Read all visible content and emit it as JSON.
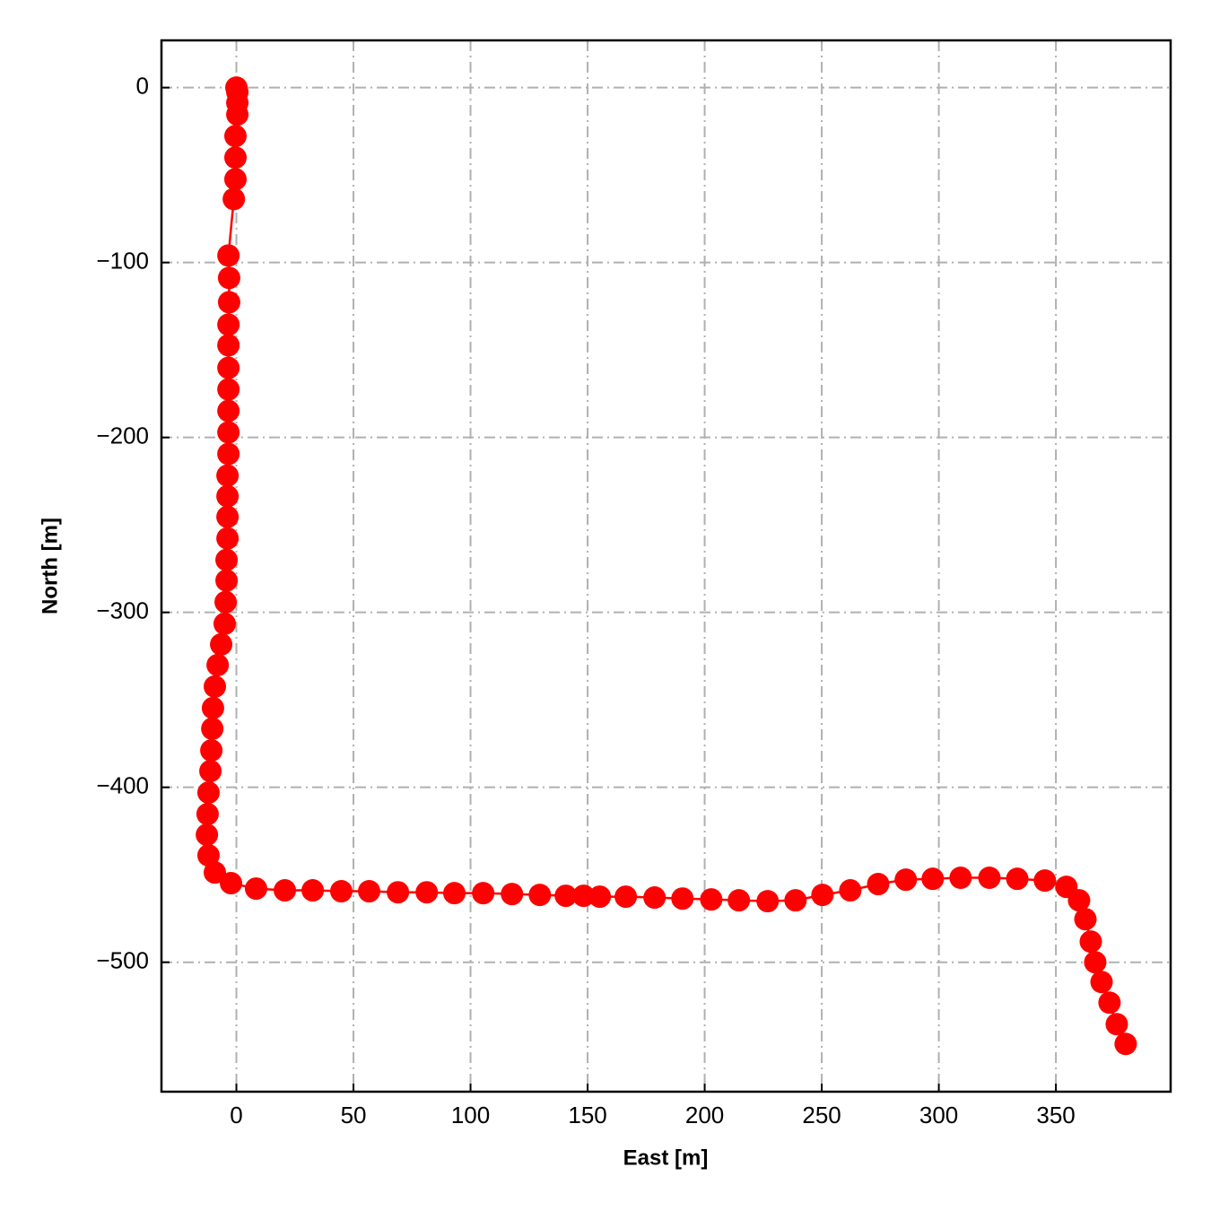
{
  "chart_data": {
    "type": "line",
    "x_label": "East [m]",
    "y_label": "North [m]",
    "xlim": [
      -32,
      399
    ],
    "ylim": [
      -574,
      27
    ],
    "xticks": [
      0,
      50,
      100,
      150,
      200,
      250,
      300,
      350
    ],
    "yticks": [
      0,
      {
        "value": -100,
        "label": "−100"
      },
      {
        "value": -200,
        "label": "−200"
      },
      {
        "value": -300,
        "label": "−300"
      },
      {
        "value": -400,
        "label": "−400"
      },
      {
        "value": -500,
        "label": "−500"
      }
    ],
    "grid": true,
    "x": [
      0,
      0.4,
      0.4,
      0.4,
      -0.4,
      -0.4,
      -0.4,
      -1.1,
      -3.4,
      -3.1,
      -3.1,
      -3.4,
      -3.4,
      -3.4,
      -3.4,
      -3.4,
      -3.4,
      -3.4,
      -3.8,
      -3.8,
      -3.8,
      -3.8,
      -4.2,
      -4.2,
      -4.6,
      -5,
      -6.5,
      -8,
      -9.2,
      -10,
      -10.3,
      -10.7,
      -11.1,
      -11.9,
      -12.3,
      -12.6,
      -11.9,
      -9.2,
      -2.3,
      8.4,
      20.7,
      32.6,
      44.8,
      56.7,
      69,
      81.3,
      93.1,
      105.4,
      117.7,
      129.6,
      140.7,
      148.3,
      155.2,
      166.3,
      178.6,
      190.5,
      202.8,
      214.6,
      226.9,
      238.8,
      250.3,
      262.2,
      274.1,
      285.9,
      297.4,
      309.3,
      321.6,
      333.5,
      345.3,
      354.5,
      359.9,
      362.6,
      364.9,
      366.8,
      369.5,
      372.9,
      376,
      379.8
    ],
    "series": [
      {
        "color": "#ff0000",
        "values": [
          0,
          -2.6,
          -8.7,
          -15.4,
          -27.7,
          -40,
          -52.4,
          -63.7,
          -96,
          -108.8,
          -122.7,
          -135.5,
          -147.3,
          -160.2,
          -172.5,
          -184.8,
          -197.1,
          -209.4,
          -221.8,
          -233.6,
          -245.4,
          -257.7,
          -270,
          -281.8,
          -294.1,
          -306.5,
          -318.3,
          -330.1,
          -342.4,
          -354.7,
          -366.5,
          -378.9,
          -390.7,
          -403,
          -415.3,
          -427.1,
          -438.9,
          -448.7,
          -454.8,
          -457.9,
          -458.9,
          -458.9,
          -459.4,
          -459.4,
          -460,
          -460,
          -460.5,
          -460.5,
          -461,
          -461.5,
          -462,
          -462,
          -462.5,
          -462.5,
          -463,
          -463.6,
          -464.1,
          -464.6,
          -465.1,
          -464.6,
          -461.5,
          -458.9,
          -455.3,
          -452.8,
          -452.3,
          -451.7,
          -451.7,
          -452.3,
          -453.3,
          -456.9,
          -464.6,
          -475.4,
          -488.2,
          -500,
          -511.3,
          -523.1,
          -535.4,
          -546.7
        ]
      }
    ]
  }
}
